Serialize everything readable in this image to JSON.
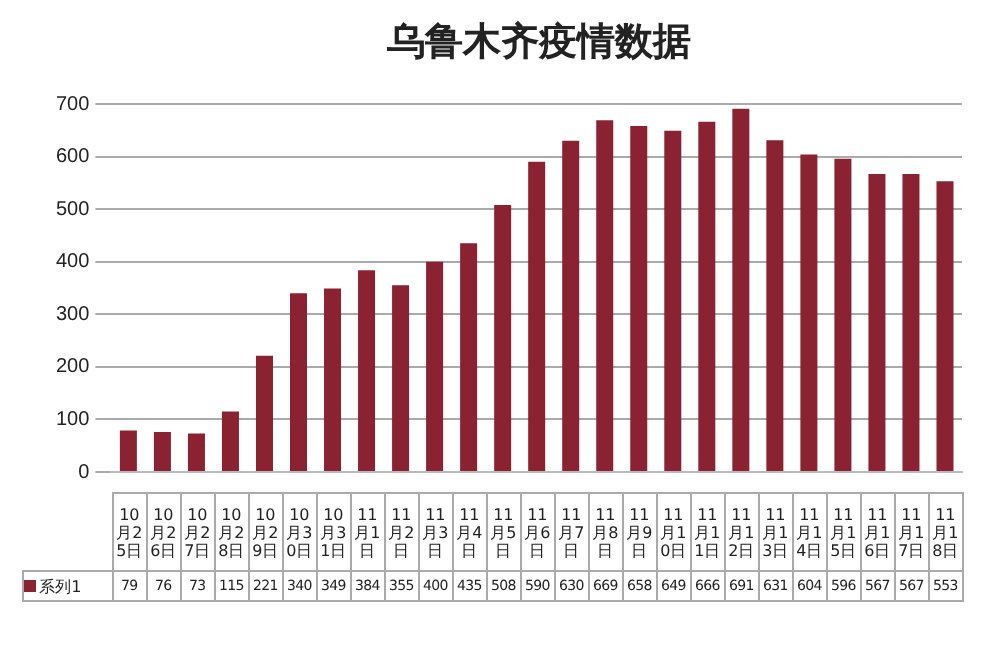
{
  "chart_data": {
    "type": "bar",
    "title": "乌鲁木齐疫情数据",
    "categories": [
      "10月25日",
      "10月26日",
      "10月27日",
      "10月28日",
      "10月29日",
      "10月30日",
      "10月31日",
      "11月1日",
      "11月2日",
      "11月3日",
      "11月4日",
      "11月5日",
      "11月6日",
      "11月7日",
      "11月8日",
      "11月9日",
      "11月10日",
      "11月11日",
      "11月12日",
      "11月13日",
      "11月14日",
      "11月15日",
      "11月16日",
      "11月17日",
      "11月18日"
    ],
    "series": [
      {
        "name": "系列1",
        "color": "#8b2232",
        "values": [
          79,
          76,
          73,
          115,
          221,
          340,
          349,
          384,
          355,
          400,
          435,
          508,
          590,
          630,
          669,
          658,
          649,
          666,
          691,
          631,
          604,
          596,
          567,
          567,
          553
        ]
      }
    ],
    "ylim": [
      0,
      700
    ],
    "yticks": [
      0,
      100,
      200,
      300,
      400,
      500,
      600,
      700
    ],
    "grid": "y",
    "legend": "bottom",
    "data_labels": true
  }
}
